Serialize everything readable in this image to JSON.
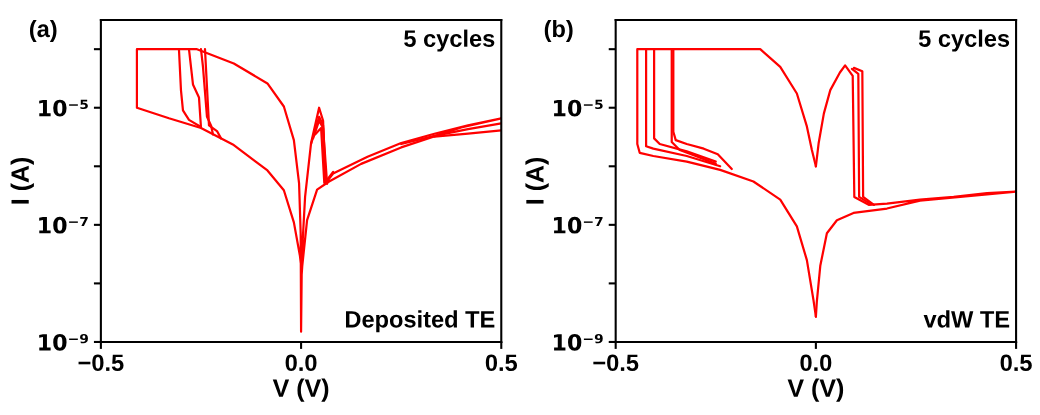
{
  "chart_data": [
    {
      "type": "line",
      "title": "(a)",
      "xlabel": "V (V)",
      "ylabel": "I (A)",
      "log": "y",
      "grid": false,
      "marker": "none",
      "line_style": "solid",
      "annotations": [
        "5 cycles",
        "Deposited TE"
      ],
      "xlim": [
        -0.5,
        0.5
      ],
      "xticks": [
        {
          "value": -0.5,
          "label": "−0.5"
        },
        {
          "value": 0,
          "label": "0.0"
        },
        {
          "value": 0.5,
          "label": "0.5"
        }
      ],
      "ylim": [
        1e-09,
        0.000316
      ],
      "yticks": [
        {
          "value": 1e-09,
          "label": "10⁻⁹"
        },
        {
          "value": 1e-08,
          "label": null
        },
        {
          "value": 1e-07,
          "label": "10⁻⁷"
        },
        {
          "value": 1e-06,
          "label": null
        },
        {
          "value": 1e-05,
          "label": "10⁻⁵"
        },
        {
          "value": 0.0001,
          "label": null
        }
      ],
      "series": [
        {
          "color": "#ff0000",
          "x": [
            0,
            -0.003,
            -0.018,
            -0.043,
            -0.084,
            -0.168,
            -0.25,
            -0.33,
            -0.41,
            -0.41,
            -0.26,
            -0.168,
            -0.084,
            -0.043,
            -0.018,
            -0.005,
            -0.001,
            0,
            0.002,
            0.01,
            0.025,
            0.045,
            0.055,
            0.06,
            0.08,
            0.166,
            0.25,
            0.333,
            0.417,
            0.5,
            0.4,
            0.25,
            0.15,
            0.07,
            0.04,
            0.015,
            0.003,
            0
          ],
          "values": [
            2e-08,
            3e-08,
            1.1e-07,
            3.9e-07,
            8.5e-07,
            2.3e-06,
            4.5e-06,
            6.6e-06,
            1e-05,
            0.0001,
            0.0001,
            5.7e-05,
            2.6e-05,
            1.05e-05,
            2.8e-06,
            5.1e-07,
            7.2e-08,
            1.5e-09,
            3e-08,
            3e-07,
            2.5e-06,
            1e-05,
            6e-06,
            5e-07,
            7.5e-07,
            1.45e-06,
            2.5e-06,
            3.6e-06,
            5e-06,
            6.6e-06,
            4.6e-06,
            2.1e-06,
            1.1e-06,
            5.5e-07,
            4e-07,
            1.2e-07,
            2e-08,
            1e-08
          ]
        },
        {
          "color": "#ff0000",
          "x": [
            -0.25,
            -0.28,
            -0.295,
            -0.3,
            -0.305
          ],
          "values": [
            4.7e-06,
            6.2e-06,
            9e-06,
            2e-05,
            0.0001
          ]
        },
        {
          "color": "#ff0000",
          "x": [
            -0.25,
            -0.255,
            -0.27,
            -0.28
          ],
          "values": [
            4.6e-06,
            1.5e-05,
            2.5e-05,
            0.0001
          ]
        },
        {
          "color": "#ff0000",
          "x": [
            -0.22,
            -0.225,
            -0.235,
            -0.245,
            -0.25
          ],
          "values": [
            3.5e-06,
            5e-06,
            7e-06,
            5e-05,
            0.0001
          ]
        },
        {
          "color": "#ff0000",
          "x": [
            -0.2,
            -0.21,
            -0.23,
            -0.24
          ],
          "values": [
            3e-06,
            4e-06,
            5e-06,
            0.0001
          ]
        },
        {
          "color": "#ff0000",
          "x": [
            0.025,
            0.045,
            0.055,
            0.062,
            0.08
          ],
          "values": [
            2.4e-06,
            7e-06,
            5e-06,
            5.5e-07,
            8e-07
          ]
        },
        {
          "color": "#ff0000",
          "x": [
            0.03,
            0.045,
            0.055,
            0.065
          ],
          "values": [
            3e-06,
            6e-06,
            4.5e-06,
            5e-07
          ]
        },
        {
          "color": "#ff0000",
          "x": [
            0.035,
            0.05,
            0.058
          ],
          "values": [
            3.5e-06,
            4.5e-06,
            5.2e-07
          ]
        },
        {
          "color": "#ff0000",
          "x": [
            0.25,
            0.333,
            0.417,
            0.5
          ],
          "values": [
            2.4e-06,
            3.3e-06,
            4.3e-06,
            5.4e-06
          ]
        },
        {
          "color": "#ff0000",
          "x": [
            0.333,
            0.417,
            0.5
          ],
          "values": [
            3.2e-06,
            3.6e-06,
            4.1e-06
          ]
        }
      ]
    },
    {
      "type": "line",
      "title": "(b)",
      "xlabel": "V (V)",
      "ylabel": "I (A)",
      "log": "y",
      "grid": false,
      "marker": "none",
      "line_style": "solid",
      "annotations": [
        "5 cycles",
        "vdW TE"
      ],
      "xlim": [
        -0.5,
        0.5
      ],
      "xticks": [
        {
          "value": -0.5,
          "label": "−0.5"
        },
        {
          "value": 0,
          "label": "0.0"
        },
        {
          "value": 0.5,
          "label": "0.5"
        }
      ],
      "ylim": [
        1e-09,
        0.000316
      ],
      "yticks": [
        {
          "value": 1e-09,
          "label": "10⁻⁹"
        },
        {
          "value": 1e-08,
          "label": null
        },
        {
          "value": 1e-07,
          "label": "10⁻⁷"
        },
        {
          "value": 1e-06,
          "label": null
        },
        {
          "value": 1e-05,
          "label": "10⁻⁵"
        },
        {
          "value": 0.0001,
          "label": null
        }
      ],
      "series": [
        {
          "color": "#ff0000",
          "x": [
            0,
            -0.006,
            -0.0225,
            -0.0475,
            -0.089,
            -0.156,
            -0.239,
            -0.3225,
            -0.406,
            -0.44,
            -0.446,
            -0.446,
            -0.139,
            -0.089,
            -0.0475,
            -0.0225,
            -0.01,
            0
          ],
          "values": [
            2.7e-09,
            5.2e-09,
            2.5e-08,
            9.4e-08,
            2.7e-07,
            5.5e-07,
            8.7e-07,
            1.2e-06,
            1.5e-06,
            1.7e-06,
            2.4e-06,
            0.0001,
            0.0001,
            5e-05,
            1.75e-05,
            4.8e-06,
            1.9e-06,
            1e-06
          ]
        },
        {
          "color": "#ff0000",
          "x": [
            0,
            0.007,
            0.02,
            0.036,
            0.06,
            0.073,
            0.092,
            0.096,
            0.132,
            0.1775,
            0.26,
            0.344,
            0.4275,
            0.5,
            0.4275,
            0.26,
            0.1775,
            0.094,
            0.0525,
            0.0275,
            0.011,
            0.0025,
            0
          ],
          "values": [
            1e-06,
            2.5e-06,
            8e-06,
            2e-05,
            4e-05,
            5.3e-05,
            3.5e-05,
            3e-07,
            2.2e-07,
            2.3e-07,
            2.7e-07,
            3e-07,
            3.5e-07,
            3.7e-07,
            3.3e-07,
            2.6e-07,
            1.9e-07,
            1.6e-07,
            1.2e-07,
            7.2e-08,
            2e-08,
            5e-09,
            2.7e-09
          ]
        },
        {
          "color": "#ff0000",
          "x": [
            -0.239,
            -0.3225,
            -0.406,
            -0.424,
            -0.424
          ],
          "values": [
            1e-06,
            1.5e-06,
            2e-06,
            2.2e-06,
            0.0001
          ]
        },
        {
          "color": "#ff0000",
          "x": [
            -0.25,
            -0.3225,
            -0.39,
            -0.404,
            -0.404
          ],
          "values": [
            1.2e-06,
            1.8e-06,
            2.4e-06,
            3e-06,
            0.0001
          ]
        },
        {
          "color": "#ff0000",
          "x": [
            -0.21,
            -0.245,
            -0.28,
            -0.3225,
            -0.35,
            -0.356,
            -0.356
          ],
          "values": [
            9e-07,
            1.6e-06,
            2e-06,
            2.4e-06,
            2.8e-06,
            3.9e-06,
            0.0001
          ]
        },
        {
          "color": "#ff0000",
          "x": [
            -0.25,
            -0.3,
            -0.34,
            -0.36,
            -0.36
          ],
          "values": [
            1.1e-06,
            1.5e-06,
            1.9e-06,
            2.6e-06,
            0.0001
          ]
        },
        {
          "color": "#ff0000",
          "x": [
            0.09,
            0.106,
            0.108,
            0.135
          ],
          "values": [
            4.6e-05,
            3.8e-05,
            3e-07,
            2.3e-07
          ]
        },
        {
          "color": "#ff0000",
          "x": [
            0.095,
            0.116,
            0.118,
            0.145
          ],
          "values": [
            4.8e-05,
            4.2e-05,
            3e-07,
            2.2e-07
          ]
        }
      ]
    }
  ]
}
